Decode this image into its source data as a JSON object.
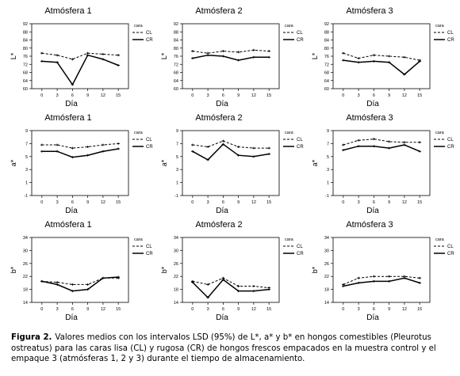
{
  "chart_data": [
    {
      "type": "line",
      "title": "Atmósfera 1",
      "xlabel": "Día",
      "ylabel": "L*",
      "x": [
        0,
        3,
        6,
        9,
        12,
        15
      ],
      "ylim": [
        60,
        92
      ],
      "yticks": [
        60,
        64,
        68,
        72,
        76,
        80,
        84,
        88,
        92
      ],
      "legend_title": "cara",
      "series": [
        {
          "name": "CL",
          "values": [
            77.5,
            76.5,
            74.5,
            77.5,
            77,
            76.5
          ]
        },
        {
          "name": "CR",
          "values": [
            73.5,
            73,
            62,
            76.5,
            74.5,
            71.5
          ]
        }
      ]
    },
    {
      "type": "line",
      "title": "Atmósfera 2",
      "xlabel": "Día",
      "ylabel": "L*",
      "x": [
        0,
        3,
        6,
        9,
        12,
        15
      ],
      "ylim": [
        60,
        92
      ],
      "yticks": [
        60,
        64,
        68,
        72,
        76,
        80,
        84,
        88,
        92
      ],
      "legend_title": "cara",
      "series": [
        {
          "name": "CL",
          "values": [
            78.5,
            77.5,
            78.5,
            78,
            79,
            78.5
          ]
        },
        {
          "name": "CR",
          "values": [
            75,
            76.5,
            76,
            74,
            75.5,
            75.5
          ]
        }
      ]
    },
    {
      "type": "line",
      "title": "Atmósfera 3",
      "xlabel": "Día",
      "ylabel": "L*",
      "x": [
        0,
        3,
        6,
        9,
        12,
        15
      ],
      "ylim": [
        60,
        92
      ],
      "yticks": [
        60,
        64,
        68,
        72,
        76,
        80,
        84,
        88,
        92
      ],
      "legend_title": "cara",
      "series": [
        {
          "name": "CL",
          "values": [
            77.5,
            75,
            76.5,
            76,
            75.5,
            74
          ]
        },
        {
          "name": "CR",
          "values": [
            74,
            73,
            73.5,
            73,
            67,
            73.5
          ]
        }
      ]
    },
    {
      "type": "line",
      "title": "Atmósfera 1",
      "xlabel": "Día",
      "ylabel": "a*",
      "x": [
        0,
        3,
        6,
        9,
        12,
        15
      ],
      "ylim": [
        -1,
        9
      ],
      "yticks": [
        -1,
        1,
        3,
        5,
        7,
        9
      ],
      "legend_title": "cara",
      "series": [
        {
          "name": "CL",
          "values": [
            6.8,
            6.8,
            6.3,
            6.5,
            6.8,
            7
          ]
        },
        {
          "name": "CR",
          "values": [
            5.8,
            5.8,
            4.9,
            5.2,
            5.8,
            6.2
          ]
        }
      ]
    },
    {
      "type": "line",
      "title": "Atmósfera 2",
      "xlabel": "Día",
      "ylabel": "a*",
      "x": [
        0,
        3,
        6,
        9,
        12,
        15
      ],
      "ylim": [
        -1,
        9
      ],
      "yticks": [
        -1,
        1,
        3,
        5,
        7,
        9
      ],
      "legend_title": "cara",
      "series": [
        {
          "name": "CL",
          "values": [
            6.8,
            6.5,
            7.4,
            6.5,
            6.3,
            6.3
          ]
        },
        {
          "name": "CR",
          "values": [
            5.8,
            4.5,
            6.9,
            5.2,
            5,
            5.4
          ]
        }
      ]
    },
    {
      "type": "line",
      "title": "Atmósfera 3",
      "xlabel": "Día",
      "ylabel": "a*",
      "x": [
        0,
        3,
        6,
        9,
        12,
        15
      ],
      "ylim": [
        -1,
        9
      ],
      "yticks": [
        -1,
        1,
        3,
        5,
        7,
        9
      ],
      "legend_title": "cara",
      "series": [
        {
          "name": "CL",
          "values": [
            6.8,
            7.5,
            7.7,
            7.3,
            7.2,
            7.2
          ]
        },
        {
          "name": "CR",
          "values": [
            6,
            6.6,
            6.6,
            6.3,
            6.8,
            5.8
          ]
        }
      ]
    },
    {
      "type": "line",
      "title": "Atmósfera 1",
      "xlabel": "Día",
      "ylabel": "b*",
      "x": [
        0,
        3,
        6,
        9,
        12,
        15
      ],
      "ylim": [
        14,
        34
      ],
      "yticks": [
        14,
        18,
        22,
        26,
        30,
        34
      ],
      "legend_title": "cara",
      "series": [
        {
          "name": "CL",
          "values": [
            20.5,
            20.2,
            19.5,
            19.5,
            21.5,
            21.5
          ]
        },
        {
          "name": "CR",
          "values": [
            20.5,
            19.5,
            17.5,
            18,
            21.5,
            21.8
          ]
        }
      ]
    },
    {
      "type": "line",
      "title": "Atmósfera 2",
      "xlabel": "Día",
      "ylabel": "b*",
      "x": [
        0,
        3,
        6,
        9,
        12,
        15
      ],
      "ylim": [
        14,
        34
      ],
      "yticks": [
        14,
        18,
        22,
        26,
        30,
        34
      ],
      "legend_title": "cara",
      "series": [
        {
          "name": "CL",
          "values": [
            20.5,
            19.5,
            21.5,
            19,
            19,
            18.5
          ]
        },
        {
          "name": "CR",
          "values": [
            20.2,
            15.5,
            21,
            17.5,
            17.5,
            18
          ]
        }
      ]
    },
    {
      "type": "line",
      "title": "Atmósfera 3",
      "xlabel": "Día",
      "ylabel": "b*",
      "x": [
        0,
        3,
        6,
        9,
        12,
        15
      ],
      "ylim": [
        14,
        34
      ],
      "yticks": [
        14,
        18,
        22,
        26,
        30,
        34
      ],
      "legend_title": "cara",
      "series": [
        {
          "name": "CL",
          "values": [
            19.5,
            21.5,
            22,
            22,
            22,
            21.5
          ]
        },
        {
          "name": "CR",
          "values": [
            19,
            20,
            20.5,
            20.5,
            21.5,
            20
          ]
        }
      ]
    }
  ],
  "caption": {
    "label": "Figura 2.",
    "text": "Valores medios con los intervalos LSD (95%) de L*, a* y b* en hongos comestibles (Pleurotus ostreatus) para las caras lisa (CL) y rugosa (CR) de hongos frescos empacados en la muestra control y el empaque 3 (atmósferas 1, 2 y 3) durante el tiempo de almacenamiento."
  }
}
